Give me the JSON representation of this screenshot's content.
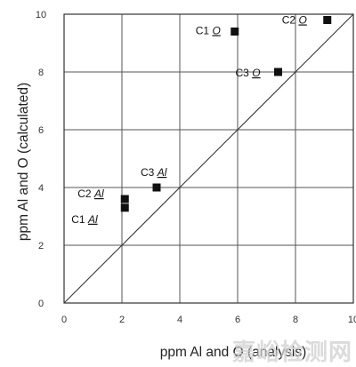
{
  "chart_data": {
    "type": "scatter",
    "xlabel": "ppm Al and O (analysis)",
    "ylabel": "ppm Al and O (calculated)",
    "xlim": [
      0,
      10
    ],
    "ylim": [
      0,
      10
    ],
    "x_ticks": [
      "0",
      "2",
      "4",
      "6",
      "8",
      "10"
    ],
    "y_ticks": [
      "0",
      "2",
      "4",
      "6",
      "8",
      "10"
    ],
    "grid": true,
    "reference_line": "y = x",
    "points": [
      {
        "x": 2.1,
        "y": 3.3,
        "label": "C1",
        "element": "Al"
      },
      {
        "x": 2.1,
        "y": 3.6,
        "label": "C2",
        "element": "Al"
      },
      {
        "x": 3.2,
        "y": 4.0,
        "label": "C3",
        "element": "Al"
      },
      {
        "x": 5.9,
        "y": 9.4,
        "label": "C1",
        "element": "O"
      },
      {
        "x": 9.1,
        "y": 9.8,
        "label": "C2",
        "element": "O"
      },
      {
        "x": 7.4,
        "y": 8.0,
        "label": "C3",
        "element": "O"
      }
    ]
  },
  "watermark": "嘉峪检测网"
}
